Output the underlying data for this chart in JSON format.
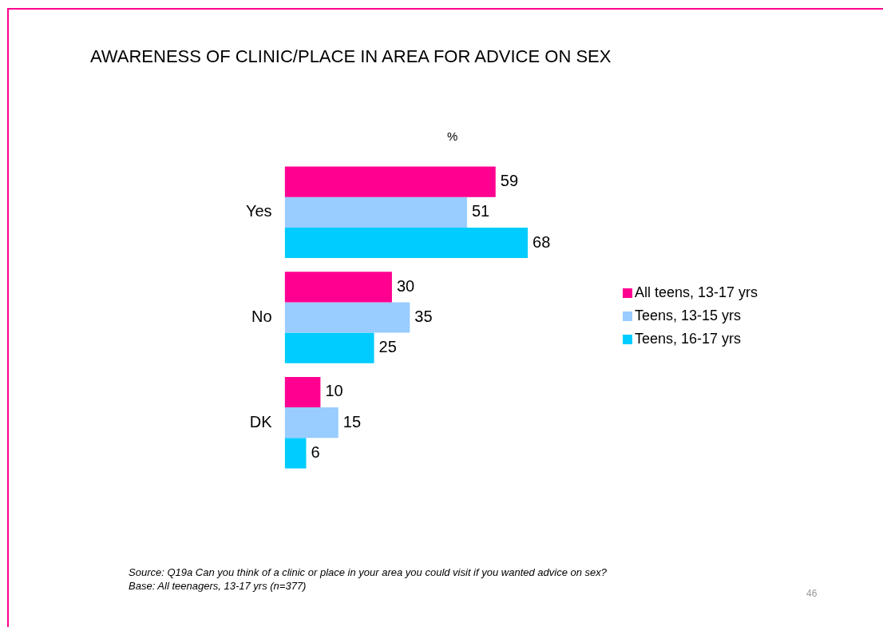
{
  "chart_data": {
    "type": "bar",
    "orientation": "horizontal",
    "title": "AWARENESS OF CLINIC/PLACE IN AREA FOR ADVICE ON SEX",
    "xlabel": "%",
    "categories": [
      "Yes",
      "No",
      "DK"
    ],
    "series": [
      {
        "name": "All teens, 13-17 yrs",
        "color": "#ff0090",
        "values": [
          59,
          30,
          10
        ]
      },
      {
        "name": "Teens, 13-15 yrs",
        "color": "#99ccff",
        "values": [
          51,
          35,
          15
        ]
      },
      {
        "name": "Teens, 16-17 yrs",
        "color": "#00ccff",
        "values": [
          68,
          25,
          6
        ]
      }
    ],
    "data_labels": true,
    "legend": "right",
    "tick_labels": "y",
    "annotations": [
      "Source: Q19a Can you think of a clinic or place in your area you could visit if you wanted advice on sex?",
      "Base: All teenagers, 13-17 yrs (n=377)",
      "46"
    ]
  }
}
